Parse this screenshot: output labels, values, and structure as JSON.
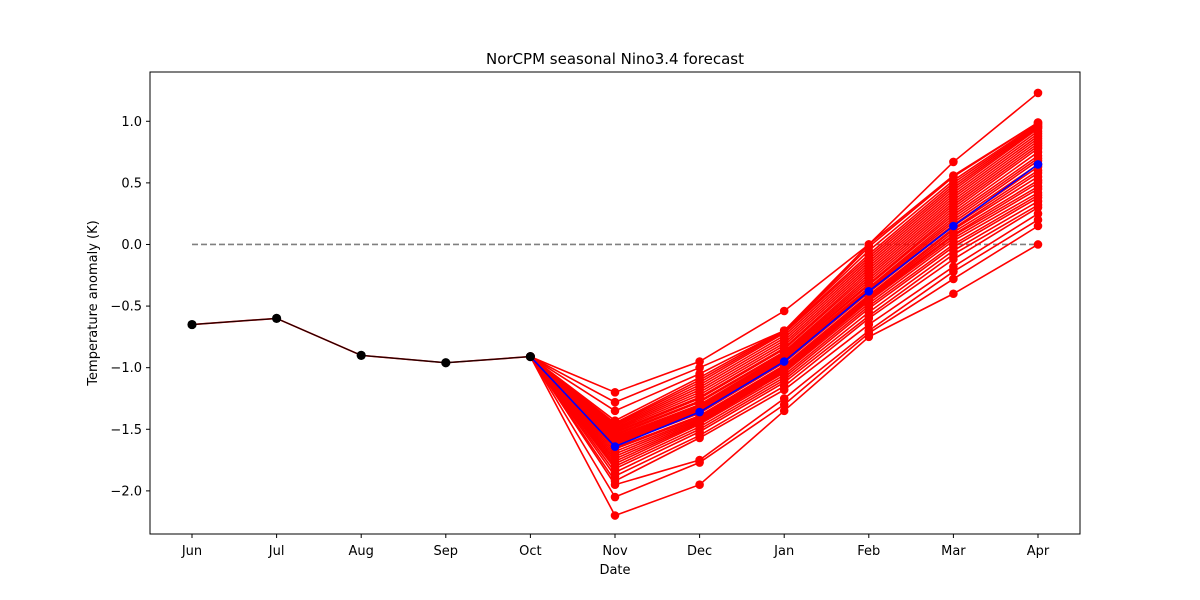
{
  "chart_data": {
    "type": "line",
    "title": "NorCPM seasonal Nino3.4 forecast",
    "xlabel": "Date",
    "ylabel": "Temperature anomaly (K)",
    "categories": [
      "Jun",
      "Jul",
      "Aug",
      "Sep",
      "Oct",
      "Nov",
      "Dec",
      "Jan",
      "Feb",
      "Mar",
      "Apr"
    ],
    "ylim": [
      -2.35,
      1.4
    ],
    "yticks": [
      -2.0,
      -1.5,
      -1.0,
      -0.5,
      0.0,
      0.5,
      1.0
    ],
    "ytick_labels": [
      "−2.0",
      "−1.5",
      "−1.0",
      "−0.5",
      "0.0",
      "0.5",
      "1.0"
    ],
    "grid": false,
    "reference_line": {
      "y": 0,
      "x_from": "Jun",
      "x_to": "Apr",
      "color": "#808080",
      "style": "dashed"
    },
    "colors": {
      "observed": "#000000",
      "ensemble": "#ff0000",
      "mean": "#0000ff"
    },
    "observed": {
      "categories": [
        "Jun",
        "Jul",
        "Aug",
        "Sep",
        "Oct"
      ],
      "values": [
        -0.65,
        -0.6,
        -0.9,
        -0.96,
        -0.91
      ]
    },
    "ensemble_mean": {
      "categories": [
        "Oct",
        "Nov",
        "Dec",
        "Jan",
        "Feb",
        "Mar",
        "Apr"
      ],
      "values": [
        -0.91,
        -1.64,
        -1.36,
        -0.95,
        -0.38,
        0.15,
        0.65
      ]
    },
    "ensemble_members": {
      "categories": [
        "Oct",
        "Nov",
        "Dec",
        "Jan",
        "Feb",
        "Mar",
        "Apr"
      ],
      "members": [
        [
          -0.91,
          -2.2,
          -1.95,
          -1.35,
          -0.75,
          -0.4,
          0.0
        ],
        [
          -0.91,
          -2.05,
          -1.77,
          -1.3,
          -0.72,
          -0.28,
          0.15
        ],
        [
          -0.91,
          -1.95,
          -1.75,
          -1.25,
          -0.7,
          -0.22,
          0.2
        ],
        [
          -0.91,
          -1.92,
          -1.57,
          -1.18,
          -0.65,
          -0.18,
          0.25
        ],
        [
          -0.91,
          -1.88,
          -1.55,
          -1.15,
          -0.6,
          -0.12,
          0.3
        ],
        [
          -0.91,
          -1.85,
          -1.52,
          -1.12,
          -0.58,
          -0.08,
          0.32
        ],
        [
          -0.91,
          -1.82,
          -1.5,
          -1.1,
          -0.55,
          -0.05,
          0.35
        ],
        [
          -0.91,
          -1.8,
          -1.48,
          -1.08,
          -0.52,
          -0.02,
          0.38
        ],
        [
          -0.91,
          -1.78,
          -1.46,
          -1.06,
          -0.5,
          0.0,
          0.4
        ],
        [
          -0.91,
          -1.76,
          -1.45,
          -1.04,
          -0.48,
          0.03,
          0.42
        ],
        [
          -0.91,
          -1.74,
          -1.44,
          -1.03,
          -0.46,
          0.05,
          0.45
        ],
        [
          -0.91,
          -1.72,
          -1.43,
          -1.02,
          -0.45,
          0.07,
          0.47
        ],
        [
          -0.91,
          -1.7,
          -1.42,
          -1.01,
          -0.44,
          0.08,
          0.5
        ],
        [
          -0.91,
          -1.68,
          -1.41,
          -1.0,
          -0.43,
          0.1,
          0.52
        ],
        [
          -0.91,
          -1.66,
          -1.4,
          -0.99,
          -0.42,
          0.12,
          0.55
        ],
        [
          -0.91,
          -1.65,
          -1.39,
          -0.98,
          -0.41,
          0.13,
          0.58
        ],
        [
          -0.91,
          -1.63,
          -1.37,
          -0.96,
          -0.39,
          0.15,
          0.6
        ],
        [
          -0.91,
          -1.62,
          -1.36,
          -0.95,
          -0.38,
          0.16,
          0.63
        ],
        [
          -0.91,
          -1.61,
          -1.35,
          -0.94,
          -0.37,
          0.18,
          0.65
        ],
        [
          -0.91,
          -1.6,
          -1.34,
          -0.93,
          -0.36,
          0.2,
          0.68
        ],
        [
          -0.91,
          -1.59,
          -1.33,
          -0.92,
          -0.35,
          0.22,
          0.7
        ],
        [
          -0.91,
          -1.58,
          -1.32,
          -0.91,
          -0.33,
          0.24,
          0.72
        ],
        [
          -0.91,
          -1.57,
          -1.31,
          -0.9,
          -0.32,
          0.26,
          0.75
        ],
        [
          -0.91,
          -1.56,
          -1.3,
          -0.89,
          -0.3,
          0.28,
          0.78
        ],
        [
          -0.91,
          -1.55,
          -1.28,
          -0.88,
          -0.28,
          0.3,
          0.8
        ],
        [
          -0.91,
          -1.54,
          -1.27,
          -0.87,
          -0.26,
          0.32,
          0.82
        ],
        [
          -0.91,
          -1.53,
          -1.25,
          -0.85,
          -0.24,
          0.34,
          0.84
        ],
        [
          -0.91,
          -1.52,
          -1.24,
          -0.84,
          -0.22,
          0.36,
          0.86
        ],
        [
          -0.91,
          -1.51,
          -1.22,
          -0.82,
          -0.2,
          0.38,
          0.88
        ],
        [
          -0.91,
          -1.5,
          -1.2,
          -0.8,
          -0.18,
          0.4,
          0.9
        ],
        [
          -0.91,
          -1.49,
          -1.18,
          -0.78,
          -0.16,
          0.42,
          0.92
        ],
        [
          -0.91,
          -1.48,
          -1.16,
          -0.76,
          -0.14,
          0.44,
          0.94
        ],
        [
          -0.91,
          -1.47,
          -1.14,
          -0.74,
          -0.12,
          0.46,
          0.95
        ],
        [
          -0.91,
          -1.46,
          -1.12,
          -0.72,
          -0.1,
          0.48,
          0.96
        ],
        [
          -0.91,
          -1.45,
          -1.1,
          -0.71,
          -0.08,
          0.5,
          0.97
        ],
        [
          -0.91,
          -1.43,
          -1.08,
          -0.7,
          -0.05,
          0.52,
          0.98
        ],
        [
          -0.91,
          -1.35,
          -1.05,
          -0.7,
          -0.02,
          0.55,
          0.99
        ],
        [
          -0.91,
          -1.28,
          -1.0,
          -0.7,
          0.0,
          0.56,
          0.99
        ],
        [
          -0.91,
          -1.2,
          -0.95,
          -0.54,
          0.0,
          0.67,
          1.23
        ]
      ]
    }
  }
}
